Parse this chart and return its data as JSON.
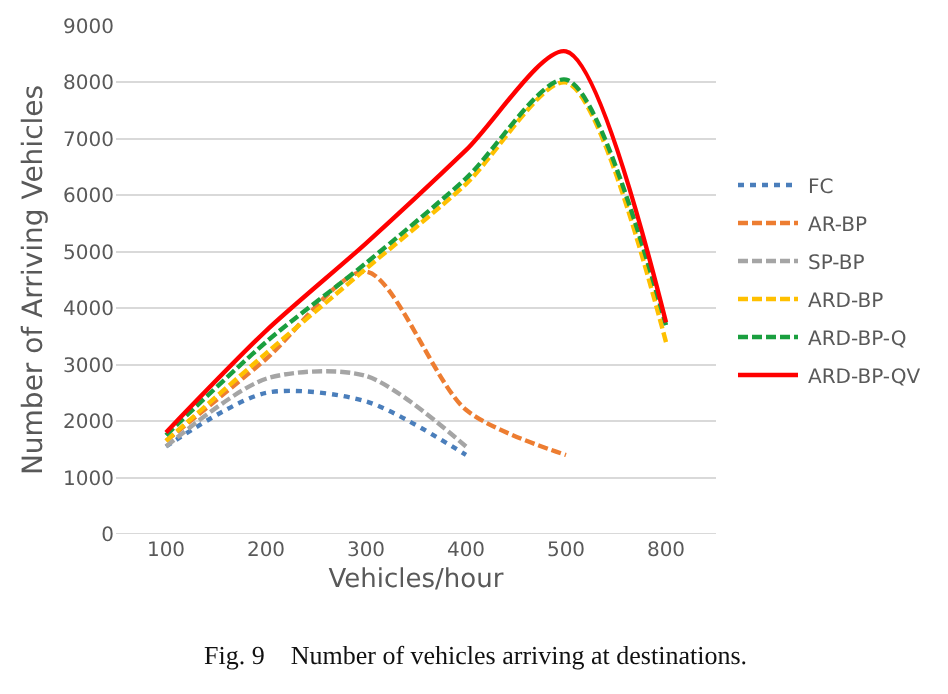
{
  "chart_data": {
    "type": "line",
    "xlabel": "Vehicles/hour",
    "ylabel": "Number of Arriving Vehicles",
    "annotations": [
      "Fig. 9    Number of vehicles arriving at destinations."
    ],
    "categories": [
      "100",
      "200",
      "300",
      "400",
      "500",
      "800"
    ],
    "ylim": [
      0,
      9000
    ],
    "yticks": [
      0,
      1000,
      2000,
      3000,
      4000,
      5000,
      6000,
      7000,
      8000,
      9000
    ],
    "grid": "y",
    "legend": "right",
    "marker": "none",
    "series": [
      {
        "name": "FC",
        "color": "#4a7ebb",
        "line_style": "dotted",
        "values": [
          1550,
          2500,
          2350,
          1400,
          null,
          null
        ]
      },
      {
        "name": "AR-BP",
        "color": "#ed7d31",
        "line_style": "dashed",
        "values": [
          1650,
          3100,
          4650,
          2200,
          1400,
          null
        ]
      },
      {
        "name": "SP-BP",
        "color": "#a5a5a5",
        "line_style": "dashed",
        "values": [
          1550,
          2750,
          2800,
          1550,
          null,
          null
        ]
      },
      {
        "name": "ARD-BP",
        "color": "#ffc000",
        "line_style": "dashed",
        "values": [
          1650,
          3200,
          4700,
          6200,
          8000,
          3400
        ]
      },
      {
        "name": "ARD-BP-Q",
        "color": "#1a9f3f",
        "line_style": "dashed",
        "values": [
          1750,
          3400,
          4800,
          6300,
          8050,
          3700
        ]
      },
      {
        "name": "ARD-BP-QV",
        "color": "#ff0000",
        "line_style": "solid",
        "values": [
          1800,
          3600,
          5150,
          6800,
          8550,
          3750
        ]
      }
    ]
  }
}
